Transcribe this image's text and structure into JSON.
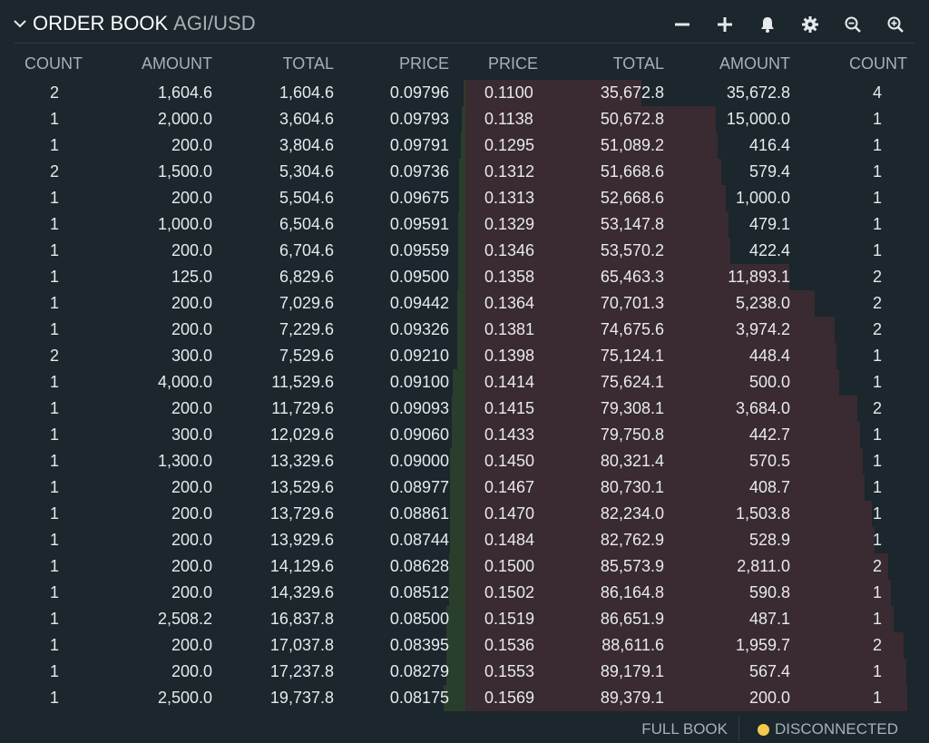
{
  "header": {
    "title": "ORDER BOOK",
    "pair": "AGI/USD",
    "tools": [
      "minus-icon",
      "plus-icon",
      "bell-icon",
      "gear-icon",
      "zoom-out-icon",
      "zoom-in-icon"
    ]
  },
  "columns": {
    "bids": [
      "COUNT",
      "AMOUNT",
      "TOTAL",
      "PRICE"
    ],
    "asks": [
      "PRICE",
      "TOTAL",
      "AMOUNT",
      "COUNT"
    ]
  },
  "bids": [
    {
      "count": "2",
      "amount": "1,604.6",
      "total": "1,604.6",
      "price": "0.09796"
    },
    {
      "count": "1",
      "amount": "2,000.0",
      "total": "3,604.6",
      "price": "0.09793"
    },
    {
      "count": "1",
      "amount": "200.0",
      "total": "3,804.6",
      "price": "0.09791"
    },
    {
      "count": "2",
      "amount": "1,500.0",
      "total": "5,304.6",
      "price": "0.09736"
    },
    {
      "count": "1",
      "amount": "200.0",
      "total": "5,504.6",
      "price": "0.09675"
    },
    {
      "count": "1",
      "amount": "1,000.0",
      "total": "6,504.6",
      "price": "0.09591"
    },
    {
      "count": "1",
      "amount": "200.0",
      "total": "6,704.6",
      "price": "0.09559"
    },
    {
      "count": "1",
      "amount": "125.0",
      "total": "6,829.6",
      "price": "0.09500"
    },
    {
      "count": "1",
      "amount": "200.0",
      "total": "7,029.6",
      "price": "0.09442"
    },
    {
      "count": "1",
      "amount": "200.0",
      "total": "7,229.6",
      "price": "0.09326"
    },
    {
      "count": "2",
      "amount": "300.0",
      "total": "7,529.6",
      "price": "0.09210"
    },
    {
      "count": "1",
      "amount": "4,000.0",
      "total": "11,529.6",
      "price": "0.09100"
    },
    {
      "count": "1",
      "amount": "200.0",
      "total": "11,729.6",
      "price": "0.09093"
    },
    {
      "count": "1",
      "amount": "300.0",
      "total": "12,029.6",
      "price": "0.09060"
    },
    {
      "count": "1",
      "amount": "1,300.0",
      "total": "13,329.6",
      "price": "0.09000"
    },
    {
      "count": "1",
      "amount": "200.0",
      "total": "13,529.6",
      "price": "0.08977"
    },
    {
      "count": "1",
      "amount": "200.0",
      "total": "13,729.6",
      "price": "0.08861"
    },
    {
      "count": "1",
      "amount": "200.0",
      "total": "13,929.6",
      "price": "0.08744"
    },
    {
      "count": "1",
      "amount": "200.0",
      "total": "14,129.6",
      "price": "0.08628"
    },
    {
      "count": "1",
      "amount": "200.0",
      "total": "14,329.6",
      "price": "0.08512"
    },
    {
      "count": "1",
      "amount": "2,508.2",
      "total": "16,837.8",
      "price": "0.08500"
    },
    {
      "count": "1",
      "amount": "200.0",
      "total": "17,037.8",
      "price": "0.08395"
    },
    {
      "count": "1",
      "amount": "200.0",
      "total": "17,237.8",
      "price": "0.08279"
    },
    {
      "count": "1",
      "amount": "2,500.0",
      "total": "19,737.8",
      "price": "0.08175"
    }
  ],
  "asks": [
    {
      "price": "0.1100",
      "total": "35,672.8",
      "amount": "35,672.8",
      "count": "4"
    },
    {
      "price": "0.1138",
      "total": "50,672.8",
      "amount": "15,000.0",
      "count": "1"
    },
    {
      "price": "0.1295",
      "total": "51,089.2",
      "amount": "416.4",
      "count": "1"
    },
    {
      "price": "0.1312",
      "total": "51,668.6",
      "amount": "579.4",
      "count": "1"
    },
    {
      "price": "0.1313",
      "total": "52,668.6",
      "amount": "1,000.0",
      "count": "1"
    },
    {
      "price": "0.1329",
      "total": "53,147.8",
      "amount": "479.1",
      "count": "1"
    },
    {
      "price": "0.1346",
      "total": "53,570.2",
      "amount": "422.4",
      "count": "1"
    },
    {
      "price": "0.1358",
      "total": "65,463.3",
      "amount": "11,893.1",
      "count": "2"
    },
    {
      "price": "0.1364",
      "total": "70,701.3",
      "amount": "5,238.0",
      "count": "2"
    },
    {
      "price": "0.1381",
      "total": "74,675.6",
      "amount": "3,974.2",
      "count": "2"
    },
    {
      "price": "0.1398",
      "total": "75,124.1",
      "amount": "448.4",
      "count": "1"
    },
    {
      "price": "0.1414",
      "total": "75,624.1",
      "amount": "500.0",
      "count": "1"
    },
    {
      "price": "0.1415",
      "total": "79,308.1",
      "amount": "3,684.0",
      "count": "2"
    },
    {
      "price": "0.1433",
      "total": "79,750.8",
      "amount": "442.7",
      "count": "1"
    },
    {
      "price": "0.1450",
      "total": "80,321.4",
      "amount": "570.5",
      "count": "1"
    },
    {
      "price": "0.1467",
      "total": "80,730.1",
      "amount": "408.7",
      "count": "1"
    },
    {
      "price": "0.1470",
      "total": "82,234.0",
      "amount": "1,503.8",
      "count": "1"
    },
    {
      "price": "0.1484",
      "total": "82,762.9",
      "amount": "528.9",
      "count": "1"
    },
    {
      "price": "0.1500",
      "total": "85,573.9",
      "amount": "2,811.0",
      "count": "2"
    },
    {
      "price": "0.1502",
      "total": "86,164.8",
      "amount": "590.8",
      "count": "1"
    },
    {
      "price": "0.1519",
      "total": "86,651.9",
      "amount": "487.1",
      "count": "1"
    },
    {
      "price": "0.1536",
      "total": "88,611.6",
      "amount": "1,959.7",
      "count": "2"
    },
    {
      "price": "0.1553",
      "total": "89,179.1",
      "amount": "567.4",
      "count": "1"
    },
    {
      "price": "0.1569",
      "total": "89,379.1",
      "amount": "200.0",
      "count": "1"
    }
  ],
  "depth_scale_max": 89379.1,
  "footer": {
    "full_book_label": "FULL BOOK",
    "status_label": "DISCONNECTED"
  },
  "colors": {
    "background": "#1b262d",
    "bid_depth": "#2a3e2c",
    "ask_depth": "#3a2a31",
    "status_dot": "#f2c94c"
  }
}
